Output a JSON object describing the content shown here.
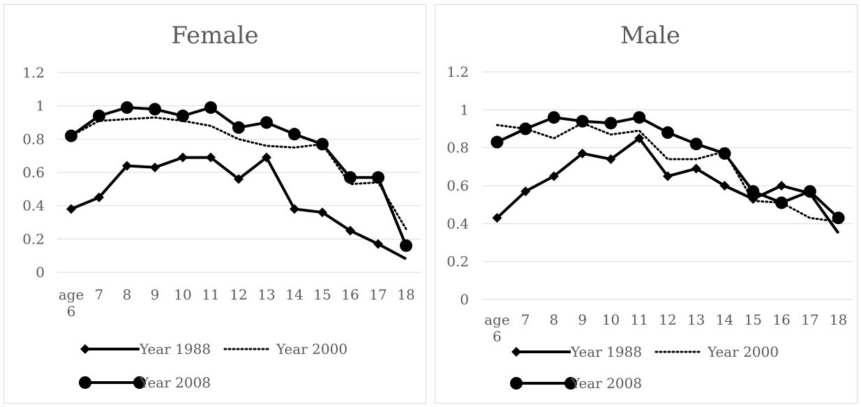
{
  "chart_data": [
    {
      "type": "line",
      "title": "Female",
      "categories": [
        "age 6",
        "7",
        "8",
        "9",
        "10",
        "11",
        "12",
        "13",
        "14",
        "15",
        "16",
        "17",
        "18"
      ],
      "ylim": [
        0,
        1.2
      ],
      "yticks": [
        "0",
        "0.2",
        "0.4",
        "0.6",
        "0.8",
        "1",
        "1.2"
      ],
      "grid": true,
      "legend_position": "bottom",
      "series": [
        {
          "name": "Year 1988",
          "style": "solid-diamond",
          "values": [
            0.38,
            0.45,
            0.64,
            0.63,
            0.69,
            0.69,
            0.56,
            0.69,
            0.38,
            0.36,
            0.25,
            0.17,
            0.08
          ]
        },
        {
          "name": "Year 2000",
          "style": "dotted",
          "values": [
            0.82,
            0.91,
            0.92,
            0.93,
            0.91,
            0.88,
            0.8,
            0.76,
            0.75,
            0.77,
            0.53,
            0.54,
            0.26
          ]
        },
        {
          "name": "Year 2008",
          "style": "solid-circle",
          "values": [
            0.82,
            0.94,
            0.99,
            0.98,
            0.94,
            0.99,
            0.87,
            0.9,
            0.83,
            0.77,
            0.57,
            0.57,
            0.16
          ]
        }
      ]
    },
    {
      "type": "line",
      "title": "Male",
      "categories": [
        "age 6",
        "7",
        "8",
        "9",
        "10",
        "11",
        "12",
        "13",
        "14",
        "15",
        "16",
        "17",
        "18"
      ],
      "ylim": [
        0,
        1.2
      ],
      "yticks": [
        "0",
        "0.2",
        "0.4",
        "0.6",
        "0.8",
        "1",
        "1.2"
      ],
      "grid": true,
      "legend_position": "bottom",
      "series": [
        {
          "name": "Year 1988",
          "style": "solid-diamond",
          "values": [
            0.43,
            0.57,
            0.65,
            0.77,
            0.74,
            0.85,
            0.65,
            0.69,
            0.6,
            0.53,
            0.6,
            0.56,
            0.35
          ]
        },
        {
          "name": "Year 2000",
          "style": "dotted",
          "values": [
            0.92,
            0.9,
            0.85,
            0.93,
            0.87,
            0.89,
            0.74,
            0.74,
            0.78,
            0.52,
            0.51,
            0.43,
            0.41
          ]
        },
        {
          "name": "Year 2008",
          "style": "solid-circle",
          "values": [
            0.83,
            0.9,
            0.96,
            0.94,
            0.93,
            0.96,
            0.88,
            0.82,
            0.77,
            0.57,
            0.51,
            0.57,
            0.43
          ]
        }
      ]
    }
  ]
}
